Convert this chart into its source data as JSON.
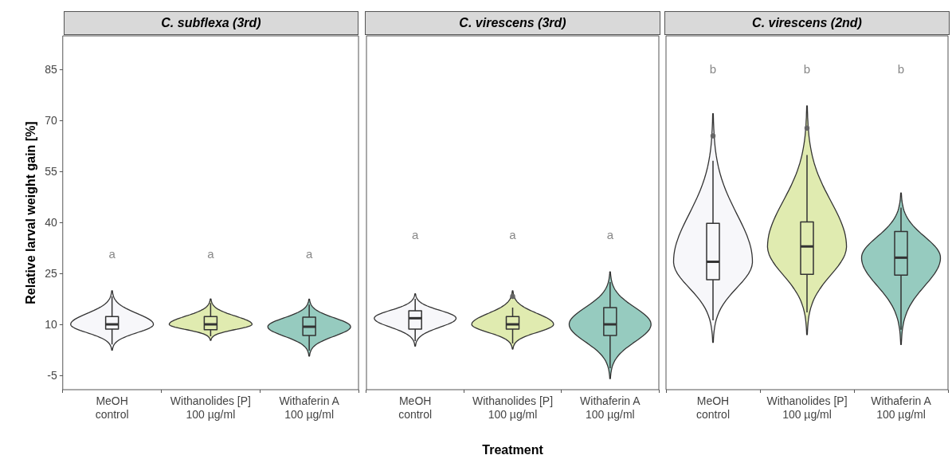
{
  "chart_data": [
    {
      "type": "box",
      "title": "C. subflexa (3rd)",
      "ylabel": "Relative larval weight gain [%]",
      "categories": [
        "MeOH\ncontrol",
        "Withanolides [P]\n100 µg/ml",
        "Withaferin A\n100 µg/ml"
      ],
      "colors": [
        "#f7f7fa",
        "#e0ebb0",
        "#96cbbf"
      ],
      "ylim": [
        -9,
        95
      ],
      "yticks": [
        -5,
        10,
        25,
        40,
        55,
        70,
        85
      ],
      "boxes": [
        {
          "low": 4.3,
          "q1": 8.8,
          "median": 10.2,
          "q3": 12.5,
          "high": 18.4
        },
        {
          "low": 6.7,
          "q1": 8.6,
          "median": 10.2,
          "q3": 12.5,
          "high": 16.5
        },
        {
          "low": 2.5,
          "q1": 6.9,
          "median": 9.5,
          "q3": 12.3,
          "high": 16
        }
      ],
      "annotations": [
        "a",
        "a",
        "a"
      ]
    },
    {
      "type": "box",
      "title": "C. virescens (3rd)",
      "xlabel": "Treatment",
      "tick_labels": "x",
      "categories": [
        "MeOH\ncontrol",
        "Withanolides [P]\n100 µg/ml",
        "Withaferin A\n100 µg/ml"
      ],
      "colors": [
        "#f7f7fa",
        "#e0ebb0",
        "#96cbbf"
      ],
      "ylim": [
        -9,
        95
      ],
      "yticks": [
        -5,
        10,
        25,
        40,
        55,
        70,
        85
      ],
      "boxes": [
        {
          "low": 5.3,
          "q1": 8.8,
          "median": 12,
          "q3": 14.2,
          "high": 17.7
        },
        {
          "low": 4.6,
          "q1": 8.8,
          "median": 10.2,
          "q3": 12.5,
          "high": 15.1,
          "outliers": [
            18.4
          ]
        },
        {
          "low": -2.7,
          "q1": 6.9,
          "median": 10.2,
          "q3": 15.1,
          "high": 22.6
        }
      ],
      "annotations": [
        "a",
        "a",
        "a"
      ]
    },
    {
      "type": "box",
      "title": "C. virescens (2nd)",
      "tick_labels": "x",
      "categories": [
        "MeOH\ncontrol",
        "Withanolides [P]\n100 µg/ml",
        "Withaferin A\n100 µg/ml"
      ],
      "colors": [
        "#f7f7fa",
        "#e0ebb0",
        "#96cbbf"
      ],
      "ylim": [
        -9,
        95
      ],
      "yticks": [
        -5,
        10,
        25,
        40,
        55,
        70,
        85
      ],
      "boxes": [
        {
          "low": 11.4,
          "q1": 23.3,
          "median": 28.6,
          "q3": 39.9,
          "high": 58.3,
          "outliers": [
            65.6
          ]
        },
        {
          "low": 13.7,
          "q1": 24.9,
          "median": 33.1,
          "q3": 40.3,
          "high": 60,
          "outliers": [
            67.9
          ]
        },
        {
          "low": 8.6,
          "q1": 24.7,
          "median": 29.8,
          "q3": 37.5,
          "high": 44.5
        }
      ],
      "annotations": [
        "b",
        "b",
        "b"
      ]
    }
  ]
}
